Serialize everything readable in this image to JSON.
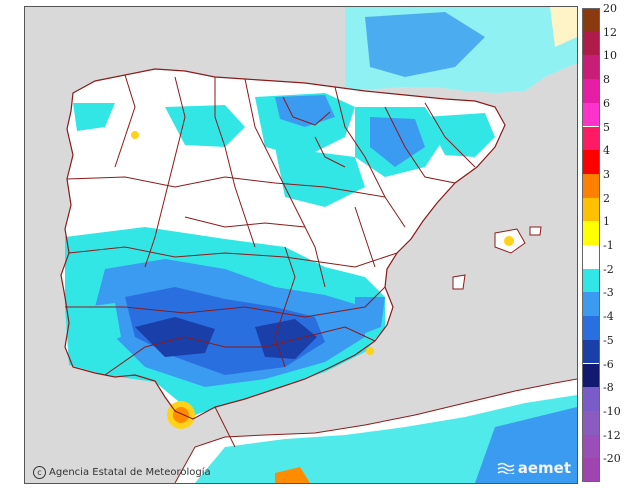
{
  "map": {
    "credit": "Agencia Estatal de Meteorología",
    "logo_text": "aemet",
    "colors": {
      "sea": "#d9d9d9",
      "land_neutral": "#ffffff",
      "border": "#8b1a1a",
      "cyan": "#33e6e6",
      "blue_light": "#3b9bf0",
      "blue_mid": "#2a6fe0",
      "blue_dark": "#1a3fa8",
      "orange": "#ff8c00",
      "yellow": "#ffd21a"
    }
  },
  "legend": {
    "items": [
      {
        "label": "20",
        "color": "#8b3a0f"
      },
      {
        "label": "12",
        "color": "#b01c4a"
      },
      {
        "label": "10",
        "color": "#c81e78"
      },
      {
        "label": "8",
        "color": "#e61ea5"
      },
      {
        "label": "6",
        "color": "#ff33cc"
      },
      {
        "label": "5",
        "color": "#ff1a66"
      },
      {
        "label": "4",
        "color": "#ff0000"
      },
      {
        "label": "3",
        "color": "#ff8000"
      },
      {
        "label": "2",
        "color": "#ffc000"
      },
      {
        "label": "1",
        "color": "#ffff00"
      },
      {
        "label": "-1",
        "color": "#ffffff"
      },
      {
        "label": "-2",
        "color": "#33e6e6"
      },
      {
        "label": "-3",
        "color": "#3b9bf0"
      },
      {
        "label": "-4",
        "color": "#2a6fe0"
      },
      {
        "label": "-5",
        "color": "#1a3fa8"
      },
      {
        "label": "-6",
        "color": "#111a70"
      },
      {
        "label": "-8",
        "color": "#7a5cc8"
      },
      {
        "label": "-10",
        "color": "#8a5cc0"
      },
      {
        "label": "-12",
        "color": "#9a4eb8"
      },
      {
        "label": "-20",
        "color": "#a044b0"
      }
    ]
  }
}
